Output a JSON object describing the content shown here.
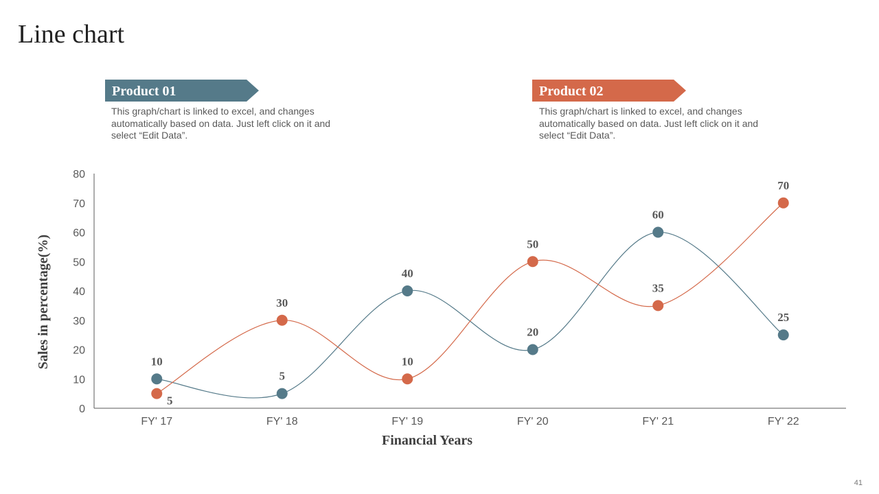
{
  "page_title": "Line chart",
  "page_number": "41",
  "legend_boxes": [
    {
      "title": "Product 01",
      "color": "#557a89",
      "text": "This graph/chart is linked to excel, and changes automatically based on data. Just left click on it and select “Edit Data”."
    },
    {
      "title": "Product 02",
      "color": "#d4694a",
      "text": "This graph/chart is linked to excel, and changes automatically based on data. Just left click on it and select “Edit Data”."
    }
  ],
  "chart_data": {
    "type": "line",
    "smooth": true,
    "categories": [
      "FY' 17",
      "FY' 18",
      "FY' 19",
      "FY' 20",
      "FY' 21",
      "FY' 22"
    ],
    "series": [
      {
        "name": "Product 01",
        "color": "#557a89",
        "values": [
          10,
          5,
          40,
          20,
          60,
          25
        ]
      },
      {
        "name": "Product 02",
        "color": "#d4694a",
        "values": [
          5,
          30,
          10,
          50,
          35,
          70
        ]
      }
    ],
    "xlabel": "Financial Years",
    "ylabel": "Sales in percentage(%)",
    "ylim": [
      0,
      80
    ],
    "yticks": [
      0,
      10,
      20,
      30,
      40,
      50,
      60,
      70,
      80
    ],
    "grid": false
  }
}
